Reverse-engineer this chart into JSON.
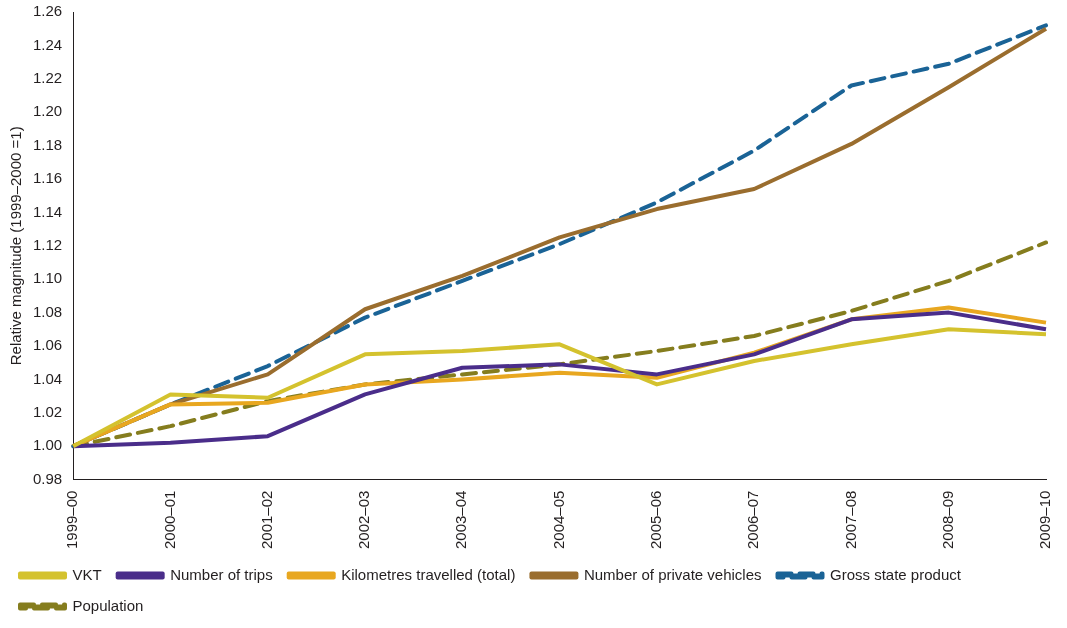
{
  "chart_data": {
    "type": "line",
    "ylabel": "Relative magnitude (1999–2000 =1)",
    "categories": [
      "1999–00",
      "2000–01",
      "2001–02",
      "2002–03",
      "2003–04",
      "2004–05",
      "2005–06",
      "2006–07",
      "2007–08",
      "2008–09",
      "2009–10"
    ],
    "series": [
      {
        "name": "Population",
        "color": "#857d1e",
        "line_style": "dashed",
        "values": [
          1.0,
          1.012,
          1.027,
          1.037,
          1.043,
          1.049,
          1.057,
          1.066,
          1.081,
          1.099,
          1.122
        ]
      },
      {
        "name": "Gross state product",
        "color": "#1a6396",
        "line_style": "dashed",
        "values": [
          1.0,
          1.025,
          1.048,
          1.077,
          1.099,
          1.121,
          1.146,
          1.177,
          1.216,
          1.229,
          1.252
        ]
      },
      {
        "name": "Number of private vehicles",
        "color": "#9a6d2e",
        "line_style": "solid",
        "values": [
          1.0,
          1.025,
          1.043,
          1.082,
          1.102,
          1.125,
          1.142,
          1.154,
          1.181,
          1.215,
          1.25
        ]
      },
      {
        "name": "Kilometres travelled (total)",
        "color": "#e8a720",
        "line_style": "solid",
        "values": [
          1.0,
          1.025,
          1.026,
          1.037,
          1.04,
          1.044,
          1.041,
          1.056,
          1.076,
          1.083,
          1.074
        ]
      },
      {
        "name": "Number of trips",
        "color": "#4a2d8a",
        "line_style": "solid",
        "values": [
          1.0,
          1.002,
          1.006,
          1.031,
          1.047,
          1.049,
          1.043,
          1.055,
          1.076,
          1.08,
          1.07
        ]
      },
      {
        "name": "VKT",
        "color": "#d4c22e",
        "line_style": "solid",
        "values": [
          1.0,
          1.031,
          1.029,
          1.055,
          1.057,
          1.061,
          1.037,
          1.051,
          1.061,
          1.07,
          1.067
        ]
      }
    ],
    "ylim": [
      0.98,
      1.26
    ],
    "yticks": [
      0.98,
      {
        "value": 1,
        "label": "1.00"
      },
      1.02,
      1.04,
      1.06,
      1.08,
      {
        "value": 1.1,
        "label": "1.10"
      },
      1.12,
      1.14,
      1.16,
      1.18,
      {
        "value": 1.2,
        "label": "1.20"
      },
      1.22,
      1.24,
      1.26
    ],
    "grid": false,
    "legend": "bottom",
    "marker": "none"
  }
}
